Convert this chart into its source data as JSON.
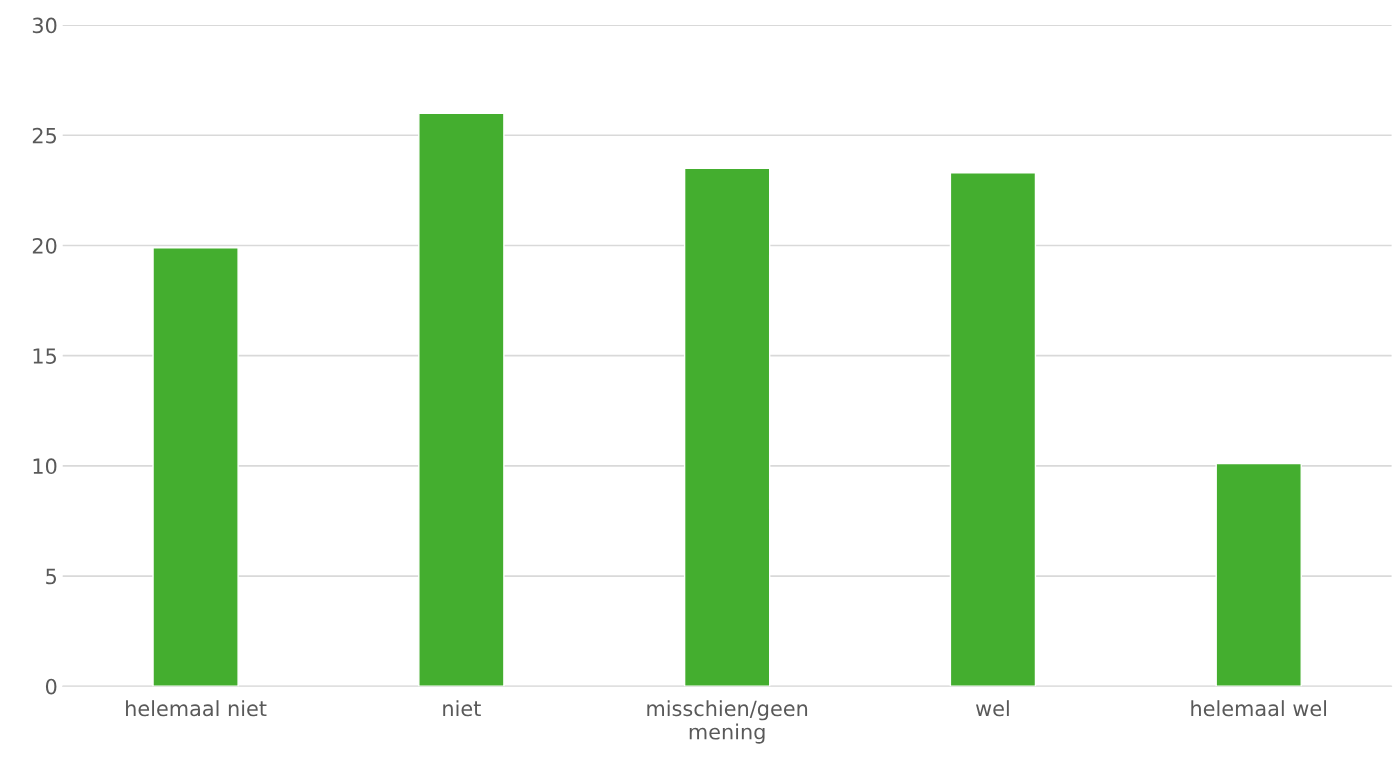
{
  "chart_data": {
    "type": "bar",
    "categories": [
      "helemaal niet",
      "niet",
      "misschien/geen\nmening",
      "wel",
      "helemaal wel"
    ],
    "values": [
      19.9,
      26.0,
      23.5,
      23.3,
      10.1
    ],
    "color": "#44ae2f",
    "ylim": [
      0,
      30
    ],
    "yticks": [
      0,
      5,
      10,
      15,
      20,
      25,
      30
    ],
    "grid": "y",
    "legend": false
  }
}
